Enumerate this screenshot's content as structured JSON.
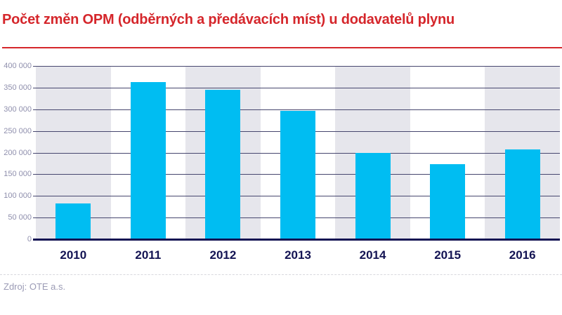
{
  "header": {
    "title": "Počet změn OPM (odběrných a předávacích míst) u dodavatelů plynu"
  },
  "footer": {
    "source": "Zdroj: OTE a.s."
  },
  "chart_data": {
    "type": "bar",
    "title": "Počet změn OPM (odběrných a předávacích míst) u dodavatelů plynu",
    "categories": [
      "2010",
      "2011",
      "2012",
      "2013",
      "2014",
      "2015",
      "2016"
    ],
    "values": [
      83000,
      362000,
      345000,
      296000,
      199500,
      174000,
      207000
    ],
    "xlabel": "",
    "ylabel": "",
    "ylim": [
      0,
      400000
    ],
    "ytick_step": 50000,
    "ytick_labels": [
      "0",
      "50 000",
      "100 000",
      "150 000",
      "200 000",
      "250 000",
      "300 000",
      "350 000",
      "400 000"
    ],
    "grid": "horizontal",
    "legend": "none",
    "band_pattern": "alternating-columns-gray-on-even",
    "colors": {
      "bar": "#00BDF2",
      "band": "#E6E6EC",
      "gridline": "#46466E",
      "axis": "#131353",
      "x_labels": "#131353",
      "y_labels": "#8F8FAD",
      "title": "#D5262B",
      "source_text": "#9B9BB5"
    }
  }
}
